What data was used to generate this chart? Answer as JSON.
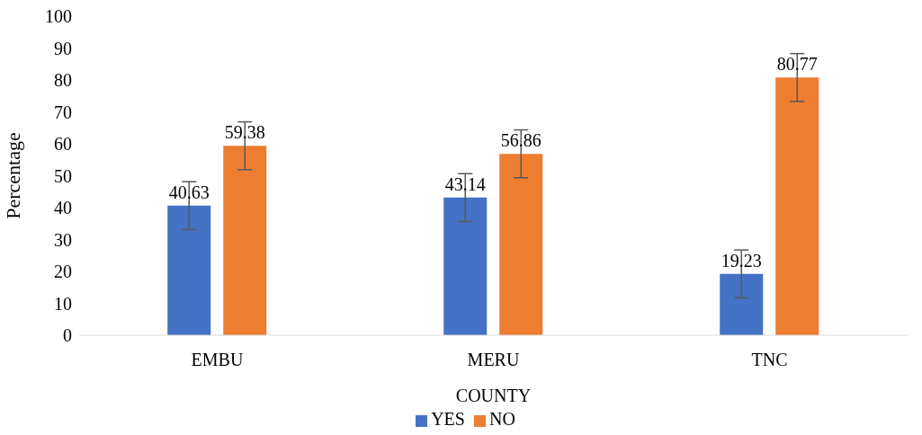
{
  "chart_data": {
    "type": "bar",
    "xlabel": "COUNTY",
    "ylabel": "Percentage",
    "categories": [
      "EMBU",
      "MERU",
      "TNC"
    ],
    "series": [
      {
        "name": "YES",
        "color": "#4472c4",
        "values": [
          40.63,
          43.14,
          19.23
        ],
        "errors": [
          7.5,
          7.5,
          7.5
        ]
      },
      {
        "name": "NO",
        "color": "#ed7d31",
        "values": [
          59.38,
          56.86,
          80.77
        ],
        "errors": [
          7.5,
          7.5,
          7.5
        ]
      }
    ],
    "ylim": [
      0,
      100
    ],
    "yticks": [
      0,
      10,
      20,
      30,
      40,
      50,
      60,
      70,
      80,
      90,
      100
    ],
    "data_labels": true,
    "legend": "bottom"
  }
}
